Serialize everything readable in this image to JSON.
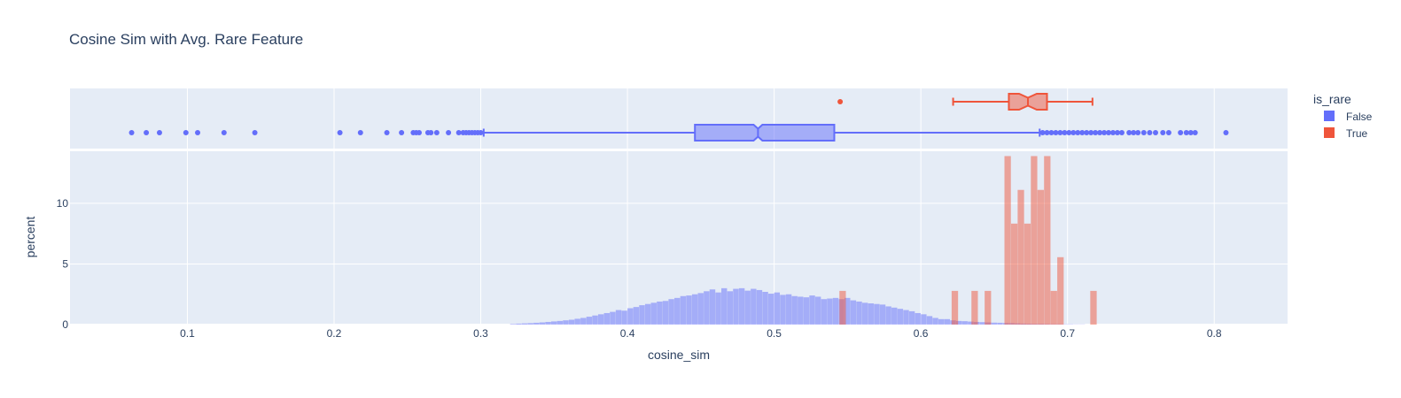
{
  "chart_data": {
    "type": "histogram",
    "title": "Cosine Sim with Avg. Rare Feature",
    "xlabel": "cosine_sim",
    "ylabel": "percent",
    "xlim": [
      0.02,
      0.85
    ],
    "ylim": [
      0,
      14.3
    ],
    "x_ticks": [
      0.1,
      0.2,
      0.3,
      0.4,
      0.5,
      0.6,
      0.7,
      0.8
    ],
    "y_ticks": [
      0,
      5,
      10
    ],
    "grid": true,
    "plot_background": "#e5ecf6",
    "legend": {
      "title": "is_rare",
      "placement": "right",
      "entries": [
        {
          "name": "False",
          "color": "#636efa"
        },
        {
          "name": "True",
          "color": "#ef553b"
        }
      ]
    },
    "marginal": {
      "type": "box",
      "notched": true,
      "series": [
        {
          "name": "False",
          "color": "#636efa",
          "min": 0.302,
          "q1": 0.446,
          "median": 0.489,
          "q3": 0.541,
          "max": 0.681,
          "notch_low": 0.486,
          "notch_high": 0.492,
          "outliers": [
            0.062,
            0.072,
            0.081,
            0.099,
            0.107,
            0.125,
            0.146,
            0.204,
            0.218,
            0.236,
            0.246,
            0.254,
            0.256,
            0.258,
            0.264,
            0.266,
            0.27,
            0.278,
            0.285,
            0.288,
            0.29,
            0.292,
            0.294,
            0.296,
            0.298,
            0.3,
            0.683,
            0.686,
            0.689,
            0.692,
            0.695,
            0.698,
            0.701,
            0.704,
            0.707,
            0.71,
            0.713,
            0.716,
            0.719,
            0.722,
            0.725,
            0.728,
            0.731,
            0.734,
            0.737,
            0.742,
            0.745,
            0.748,
            0.752,
            0.756,
            0.76,
            0.765,
            0.769,
            0.777,
            0.781,
            0.784,
            0.787,
            0.808
          ]
        },
        {
          "name": "True",
          "color": "#ef553b",
          "min": 0.622,
          "q1": 0.66,
          "median": 0.673,
          "q3": 0.686,
          "max": 0.717,
          "notch_low": 0.667,
          "notch_high": 0.679,
          "outliers": [
            0.545
          ]
        }
      ]
    },
    "series": [
      {
        "name": "False",
        "color": "#636efa",
        "bin_width": 0.004,
        "x": [
          0.32,
          0.324,
          0.328,
          0.332,
          0.336,
          0.34,
          0.344,
          0.348,
          0.352,
          0.356,
          0.36,
          0.364,
          0.368,
          0.372,
          0.376,
          0.38,
          0.384,
          0.388,
          0.392,
          0.396,
          0.4,
          0.404,
          0.408,
          0.412,
          0.416,
          0.42,
          0.424,
          0.428,
          0.432,
          0.436,
          0.44,
          0.444,
          0.448,
          0.452,
          0.456,
          0.46,
          0.464,
          0.468,
          0.472,
          0.476,
          0.48,
          0.484,
          0.488,
          0.492,
          0.496,
          0.5,
          0.504,
          0.508,
          0.512,
          0.516,
          0.52,
          0.524,
          0.528,
          0.532,
          0.536,
          0.54,
          0.544,
          0.548,
          0.552,
          0.556,
          0.56,
          0.564,
          0.568,
          0.572,
          0.576,
          0.58,
          0.584,
          0.588,
          0.592,
          0.596,
          0.6,
          0.604,
          0.608,
          0.612,
          0.616,
          0.62,
          0.624,
          0.628,
          0.632,
          0.636,
          0.64,
          0.644,
          0.648,
          0.652,
          0.656,
          0.66,
          0.664,
          0.668,
          0.672,
          0.676,
          0.68,
          0.684,
          0.688,
          0.692,
          0.696,
          0.7,
          0.704,
          0.708
        ],
        "y": [
          0.05,
          0.08,
          0.1,
          0.12,
          0.15,
          0.18,
          0.22,
          0.26,
          0.3,
          0.35,
          0.4,
          0.48,
          0.55,
          0.65,
          0.75,
          0.85,
          0.95,
          1.05,
          1.2,
          1.15,
          1.35,
          1.45,
          1.6,
          1.7,
          1.8,
          1.9,
          1.95,
          2.1,
          2.2,
          2.35,
          2.4,
          2.5,
          2.6,
          2.75,
          2.9,
          2.65,
          3.0,
          2.75,
          2.95,
          3.0,
          2.8,
          2.95,
          2.85,
          2.7,
          2.55,
          2.65,
          2.45,
          2.5,
          2.35,
          2.3,
          2.25,
          2.4,
          2.3,
          2.1,
          2.15,
          2.2,
          2.1,
          2.2,
          2.0,
          1.9,
          1.8,
          1.75,
          1.7,
          1.65,
          1.5,
          1.4,
          1.3,
          1.2,
          1.1,
          0.95,
          0.85,
          0.7,
          0.55,
          0.45,
          0.45,
          0.35,
          0.3,
          0.28,
          0.25,
          0.22,
          0.2,
          0.18,
          0.16,
          0.15,
          0.13,
          0.12,
          0.1,
          0.08,
          0.07,
          0.06,
          0.06,
          0.05,
          0.04,
          0.04,
          0.03,
          0.03,
          0.02,
          0.02
        ]
      },
      {
        "name": "True",
        "color": "#ef553b",
        "bin_width": 0.0045,
        "x": [
          0.5445,
          0.621,
          0.6345,
          0.6435,
          0.657,
          0.6615,
          0.666,
          0.6705,
          0.675,
          0.6795,
          0.684,
          0.6885,
          0.693,
          0.7155
        ],
        "y": [
          2.78,
          2.78,
          2.78,
          2.78,
          13.9,
          8.33,
          11.11,
          8.33,
          13.9,
          11.11,
          13.9,
          2.78,
          5.56,
          2.78
        ]
      }
    ]
  }
}
